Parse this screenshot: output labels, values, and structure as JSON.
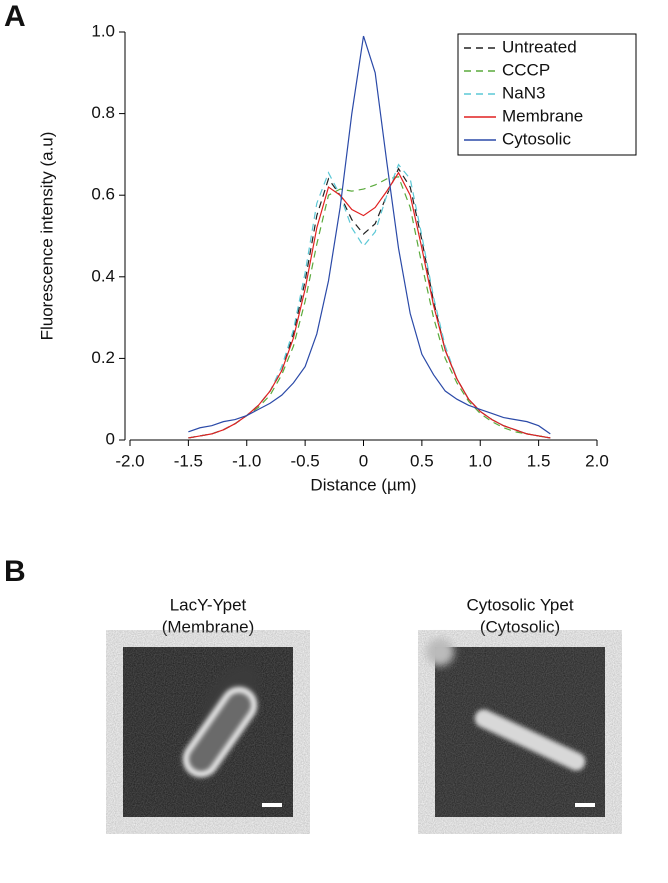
{
  "panel_labels": [
    "A",
    "B"
  ],
  "chart_data": {
    "type": "line",
    "x_label": "Distance (µm)",
    "y_label": "Fluorescence intensity (a.u)",
    "x": [
      -1.5,
      -1.4,
      -1.3,
      -1.2,
      -1.1,
      -1.0,
      -0.9,
      -0.8,
      -0.7,
      -0.6,
      -0.5,
      -0.4,
      -0.3,
      -0.2,
      -0.1,
      0,
      0.1,
      0.2,
      0.3,
      0.4,
      0.5,
      0.6,
      0.7,
      0.8,
      0.9,
      1.0,
      1.1,
      1.2,
      1.3,
      1.4,
      1.5,
      1.6
    ],
    "xlim": [
      -2,
      2
    ],
    "xticks": [
      {
        "value": -2,
        "label": "-2.0"
      },
      {
        "value": -1.5,
        "label": "-1.5"
      },
      {
        "value": -1,
        "label": "-1.0"
      },
      {
        "value": -0.5,
        "label": "-0.5"
      },
      0,
      0.5,
      {
        "value": 1,
        "label": "1.0"
      },
      1.5,
      {
        "value": 2,
        "label": "2.0"
      }
    ],
    "ylim": [
      0,
      1
    ],
    "yticks": [
      0,
      0.2,
      0.4,
      0.6,
      0.8,
      {
        "value": 1,
        "label": "1.0"
      }
    ],
    "legend": "top-right",
    "series": [
      {
        "name": "Untreated",
        "color": "#222222",
        "style": "dashed",
        "values": [
          0.005,
          0.01,
          0.015,
          0.025,
          0.04,
          0.06,
          0.085,
          0.12,
          0.17,
          0.26,
          0.39,
          0.55,
          0.64,
          0.6,
          0.54,
          0.505,
          0.53,
          0.6,
          0.665,
          0.62,
          0.49,
          0.34,
          0.22,
          0.15,
          0.1,
          0.07,
          0.05,
          0.035,
          0.025,
          0.015,
          0.01,
          0.005
        ]
      },
      {
        "name": "CCCP",
        "color": "#5aaa3c",
        "style": "dashed",
        "values": [
          0.005,
          0.01,
          0.015,
          0.025,
          0.04,
          0.06,
          0.08,
          0.11,
          0.16,
          0.23,
          0.34,
          0.48,
          0.6,
          0.615,
          0.61,
          0.615,
          0.625,
          0.64,
          0.645,
          0.57,
          0.43,
          0.3,
          0.2,
          0.14,
          0.095,
          0.065,
          0.045,
          0.03,
          0.02,
          0.015,
          0.01,
          0.005
        ]
      },
      {
        "name": "NaN3",
        "color": "#5cc8d6",
        "style": "dashed",
        "values": [
          0.005,
          0.01,
          0.015,
          0.025,
          0.04,
          0.06,
          0.085,
          0.12,
          0.18,
          0.27,
          0.41,
          0.58,
          0.655,
          0.6,
          0.52,
          0.475,
          0.51,
          0.6,
          0.675,
          0.64,
          0.5,
          0.35,
          0.23,
          0.15,
          0.1,
          0.07,
          0.05,
          0.035,
          0.025,
          0.015,
          0.01,
          0.005
        ]
      },
      {
        "name": "Membrane",
        "color": "#e02020",
        "style": "solid",
        "values": [
          0.005,
          0.01,
          0.015,
          0.025,
          0.04,
          0.06,
          0.085,
          0.12,
          0.17,
          0.25,
          0.37,
          0.52,
          0.62,
          0.6,
          0.565,
          0.55,
          0.57,
          0.61,
          0.655,
          0.6,
          0.47,
          0.33,
          0.22,
          0.15,
          0.1,
          0.07,
          0.05,
          0.035,
          0.025,
          0.015,
          0.01,
          0.005
        ]
      },
      {
        "name": "Cytosolic",
        "color": "#2b4aa8",
        "style": "solid",
        "values": [
          0.02,
          0.03,
          0.035,
          0.045,
          0.05,
          0.06,
          0.075,
          0.09,
          0.11,
          0.14,
          0.18,
          0.26,
          0.39,
          0.57,
          0.8,
          0.99,
          0.9,
          0.68,
          0.47,
          0.31,
          0.21,
          0.16,
          0.12,
          0.1,
          0.085,
          0.075,
          0.065,
          0.055,
          0.05,
          0.045,
          0.035,
          0.015
        ]
      }
    ]
  },
  "images": [
    {
      "title": "LacY-Ypet",
      "subtitle": "(Membrane)"
    },
    {
      "title": "Cytosolic Ypet",
      "subtitle": "(Cytosolic)"
    }
  ]
}
